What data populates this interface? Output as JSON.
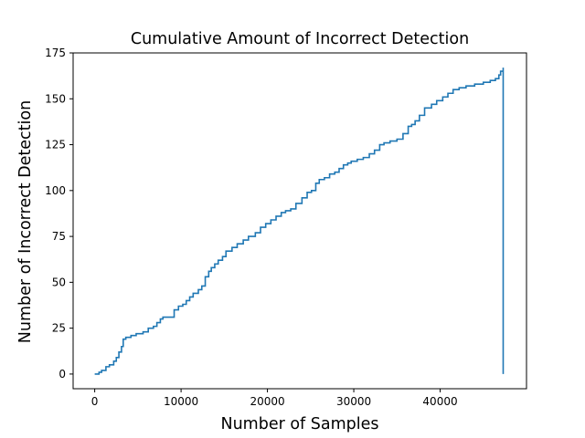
{
  "chart_data": {
    "type": "line",
    "title": "Cumulative Amount of Incorrect Detection",
    "xlabel": "Number of Samples",
    "ylabel": "Number of Incorrect Detection",
    "xlim": [
      -2500,
      50000
    ],
    "ylim": [
      -8,
      175
    ],
    "xticks": [
      0,
      10000,
      20000,
      30000,
      40000
    ],
    "xtick_labels": [
      "0",
      "10000",
      "20000",
      "30000",
      "40000"
    ],
    "yticks": [
      0,
      25,
      50,
      75,
      100,
      125,
      150,
      175
    ],
    "ytick_labels": [
      "0",
      "25",
      "50",
      "75",
      "100",
      "125",
      "150",
      "175"
    ],
    "grid": false,
    "legend": "none",
    "series": [
      {
        "color": "#1f77b4",
        "style": "step",
        "x": [
          0,
          500,
          800,
          1300,
          1700,
          2200,
          2500,
          2800,
          3100,
          3300,
          3600,
          4200,
          4800,
          5600,
          6200,
          6800,
          7200,
          7600,
          7900,
          9000,
          9200,
          9700,
          10200,
          10600,
          11000,
          11400,
          12000,
          12400,
          12800,
          13200,
          13500,
          13900,
          14300,
          14800,
          15200,
          15500,
          15900,
          16500,
          17200,
          17800,
          18600,
          19200,
          19800,
          20400,
          21000,
          21600,
          22100,
          22700,
          23300,
          24000,
          24600,
          25100,
          25600,
          26000,
          26600,
          27200,
          27800,
          28300,
          28800,
          29300,
          29700,
          30400,
          31100,
          31800,
          32400,
          33000,
          33500,
          34200,
          35000,
          35700,
          36300,
          36700,
          37100,
          37600,
          38200,
          39000,
          39600,
          40300,
          40900,
          41500,
          42200,
          43000,
          44000,
          45000,
          45800,
          46400,
          46800,
          47000,
          47300,
          47300
        ],
        "y": [
          0,
          1,
          2,
          4,
          5,
          7,
          9,
          12,
          15,
          19,
          20,
          21,
          22,
          23,
          25,
          26,
          28,
          30,
          31,
          31,
          35,
          37,
          38,
          40,
          42,
          44,
          46,
          48,
          53,
          56,
          58,
          60,
          62,
          64,
          67,
          67,
          69,
          71,
          73,
          75,
          77,
          80,
          82,
          84,
          86,
          88,
          89,
          90,
          93,
          96,
          99,
          100,
          104,
          106,
          107,
          109,
          110,
          112,
          114,
          115,
          116,
          117,
          118,
          120,
          122,
          125,
          126,
          127,
          128,
          131,
          135,
          136,
          138,
          141,
          145,
          147,
          149,
          151,
          153,
          155,
          156,
          157,
          158,
          159,
          160,
          161,
          163,
          165,
          167,
          0
        ]
      }
    ]
  }
}
